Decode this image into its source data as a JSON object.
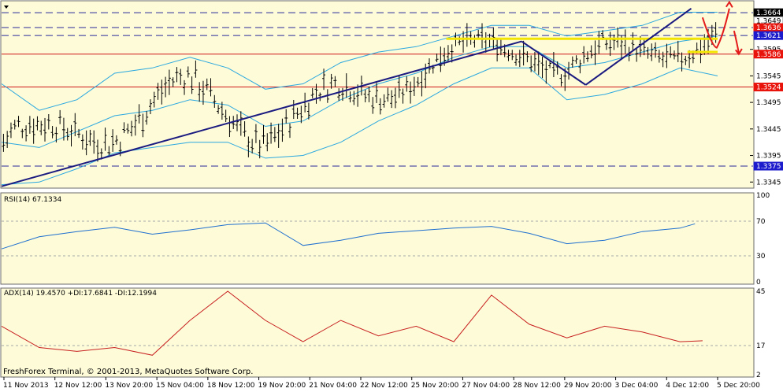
{
  "chart_data": [
    {
      "type": "candlestick",
      "panel": "price",
      "ylim": [
        1.3335,
        1.3685
      ],
      "yticks": [
        "1.3345",
        "1.3395",
        "1.3445",
        "1.3495",
        "1.3545",
        "1.3595"
      ],
      "price_tags": [
        {
          "label": "1.3664",
          "value": 1.3664,
          "bg": "#000000",
          "fg": "#ffffff"
        },
        {
          "label": "1.3649",
          "value": 1.3649,
          "bg": "#ffffff",
          "fg": "#000000"
        },
        {
          "label": "1.3636",
          "value": 1.3636,
          "bg": "#e8140c",
          "fg": "#ffffff"
        },
        {
          "label": "1.3621",
          "value": 1.3621,
          "bg": "#1c1ccc",
          "fg": "#ffffff"
        },
        {
          "label": "1.3586",
          "value": 1.3586,
          "bg": "#e8140c",
          "fg": "#ffffff"
        },
        {
          "label": "1.3524",
          "value": 1.3524,
          "bg": "#e8140c",
          "fg": "#ffffff"
        },
        {
          "label": "1.3375",
          "value": 1.3375,
          "bg": "#1c1ccc",
          "fg": "#ffffff"
        }
      ],
      "levels": [
        {
          "value": 1.3664,
          "color": "#2a2a9a",
          "style": "dashed"
        },
        {
          "value": 1.3636,
          "color": "#2a2a9a",
          "style": "dashed"
        },
        {
          "value": 1.3621,
          "color": "#2a2a9a",
          "style": "dashed"
        },
        {
          "value": 1.3586,
          "color": "#d01818",
          "style": "solid"
        },
        {
          "value": 1.3524,
          "color": "#d01818",
          "style": "solid"
        },
        {
          "value": 1.3375,
          "color": "#2a2a9a",
          "style": "dashed"
        }
      ],
      "bollinger": {
        "x": [
          0,
          10,
          20,
          30,
          40,
          50,
          60,
          70,
          80,
          90,
          100,
          110,
          120,
          130,
          140,
          150,
          160,
          170,
          180,
          190
        ],
        "upper": [
          1.353,
          1.348,
          1.35,
          1.355,
          1.356,
          1.358,
          1.356,
          1.352,
          1.353,
          1.357,
          1.359,
          1.36,
          1.362,
          1.364,
          1.364,
          1.362,
          1.363,
          1.364,
          1.3665,
          1.3665
        ],
        "middle": [
          1.342,
          1.341,
          1.344,
          1.347,
          1.348,
          1.35,
          1.349,
          1.345,
          1.346,
          1.35,
          1.353,
          1.355,
          1.358,
          1.36,
          1.36,
          1.356,
          1.357,
          1.359,
          1.361,
          1.362
        ],
        "lower": [
          1.334,
          1.3345,
          1.337,
          1.34,
          1.341,
          1.342,
          1.342,
          1.339,
          1.3395,
          1.342,
          1.346,
          1.349,
          1.353,
          1.356,
          1.356,
          1.35,
          1.351,
          1.353,
          1.356,
          1.3545
        ]
      },
      "trend_lines": [
        {
          "points": [
            [
              0,
              1.3337
            ],
            [
              138,
              1.361
            ]
          ],
          "color": "#1a1a80"
        },
        {
          "points": [
            [
              138,
              1.361
            ],
            [
              155,
              1.3528
            ]
          ],
          "color": "#1a1a80"
        },
        {
          "points": [
            [
              155,
              1.3528
            ],
            [
              183,
              1.3672
            ]
          ],
          "color": "#1a1a80"
        }
      ],
      "highlight_lines": [
        {
          "value": 1.3615,
          "x_from": 118,
          "x_to": 190,
          "color": "#f3e500"
        },
        {
          "value": 1.359,
          "x_from": 182,
          "x_to": 190,
          "color": "#f3e500"
        }
      ],
      "candles": {
        "x_span": 190,
        "count": 190
      }
    },
    {
      "type": "line",
      "panel": "rsi",
      "title": "RSI(14) 67.1334",
      "ylim": [
        0,
        100
      ],
      "yticks": [
        "100",
        "70",
        "30",
        "0"
      ],
      "levels": [
        70,
        30
      ],
      "x": [
        0,
        10,
        20,
        30,
        40,
        50,
        60,
        70,
        80,
        90,
        100,
        110,
        120,
        130,
        140,
        150,
        160,
        170,
        180,
        184
      ],
      "values": [
        38,
        52,
        58,
        63,
        55,
        60,
        66,
        68,
        42,
        48,
        56,
        59,
        62,
        64,
        56,
        44,
        48,
        58,
        62,
        67
      ]
    },
    {
      "type": "line",
      "panel": "adx",
      "title": "ADX(14) 19.4570 +DI:17.6841 -DI:12.1994",
      "ylim": [
        2,
        45
      ],
      "yticks": [
        "45",
        "17",
        "2"
      ],
      "levels": [
        17
      ],
      "x": [
        0,
        10,
        20,
        30,
        40,
        50,
        60,
        70,
        80,
        90,
        100,
        110,
        120,
        130,
        140,
        150,
        160,
        170,
        180,
        186
      ],
      "values": [
        27,
        16,
        14,
        16,
        12,
        30,
        45,
        30,
        19,
        30,
        22,
        27,
        19,
        43,
        28,
        21,
        27,
        24,
        19,
        19.5
      ]
    }
  ],
  "x_labels": [
    "11 Nov 2013",
    "12 Nov 12:00",
    "13 Nov 20:00",
    "15 Nov 04:00",
    "18 Nov 12:00",
    "19 Nov 20:00",
    "21 Nov 04:00",
    "22 Nov 12:00",
    "25 Nov 20:00",
    "27 Nov 04:00",
    "28 Nov 12:00",
    "29 Nov 20:00",
    "3 Dec 04:00",
    "4 Dec 12:00",
    "5 Dec 20:00"
  ],
  "credit": "FreshForex Terminal, © 2001-2013, MetaQuotes Software Corp.",
  "colors": {
    "plot_bg": "#fdfbd8",
    "bollinger": "#2ba8e0",
    "candle": "#000000",
    "rsi": "#1f6fd0",
    "adx": "#c82020",
    "arrow": "#e41b1b",
    "yellow": "#f3e500"
  },
  "icons": {
    "menu": "triangle-down-icon",
    "forecast": "zigzag-arrow-icon"
  }
}
